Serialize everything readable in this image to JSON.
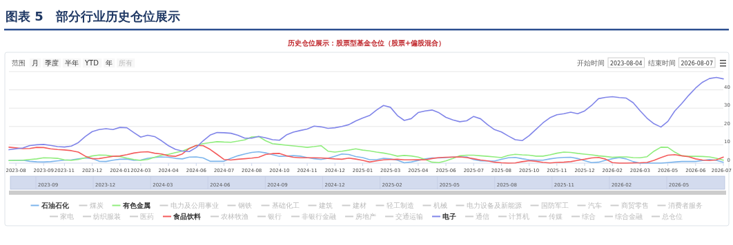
{
  "chart_data": {
    "type": "line",
    "title": "图表 5　部分行业历史仓位展示",
    "subtitle": "历史仓位展示：股票型基金仓位（股票+偏股混合）",
    "categories": [
      null,
      "2023-08",
      null,
      null,
      null,
      "2023-09",
      null,
      null,
      "2023-11",
      null,
      null,
      null,
      "2023-12",
      null,
      null,
      null,
      "2024-01",
      null,
      null,
      "2024-03",
      null,
      null,
      null,
      "2024-04",
      null,
      null,
      null,
      "2024-06",
      null,
      null,
      null,
      "2024-07",
      null,
      null,
      null,
      "2024-08",
      null,
      null,
      null,
      "2024-10",
      null,
      null,
      null,
      "2024-11",
      null,
      null,
      null,
      "2024-12",
      null,
      null,
      null,
      "2025-01",
      null,
      null,
      null,
      "2025-03",
      null,
      null,
      null,
      "2025-04",
      null,
      null,
      null,
      "2025-06",
      null,
      null,
      null,
      "2025-07",
      null,
      null,
      null,
      "2025-08",
      null,
      null,
      null,
      "2025-10",
      null,
      null,
      null,
      "2025-11",
      null,
      null,
      null,
      "2025-12",
      null,
      null,
      null,
      "2026-02",
      null,
      null,
      null,
      "2026-03",
      null,
      null,
      null,
      "2026-05",
      null,
      null,
      null,
      "2026-06",
      null,
      null,
      null,
      "2026-07"
    ],
    "ylim": [
      0,
      50
    ],
    "yticks": [
      0,
      10,
      20,
      30,
      40,
      {
        "value": 50,
        "label": null
      }
    ],
    "grid": "y",
    "legend": "bottom",
    "marker": "none",
    "line_style": "solid",
    "annotations": [
      "范围",
      "月",
      "季度",
      "半年",
      "YTD",
      "年",
      "所有",
      "开始时间",
      "2023-08-04",
      "结束时间",
      "2026-08-07",
      "2023-09",
      "2023-12",
      "2024-03",
      "2024-06",
      "2024-09",
      "2024-12",
      "2025-02",
      "2025-05",
      "2025-08",
      "2025-11",
      "2026-02",
      "2026-05",
      "煤炭",
      "电力及公用事业",
      "钢铁",
      "基础化工",
      "建筑",
      "建材",
      "轻工制造",
      "机械",
      "电力设备及新能源",
      "国防军工",
      "汽车",
      "商贸零售",
      "消费者服务",
      "家电",
      "纺织服装",
      "医药",
      "农林牧渔",
      "银行",
      "非银行金融",
      "房地产",
      "交通运输",
      "通信",
      "计算机",
      "传媒",
      "综合",
      "综合金融",
      "总仓位"
    ],
    "series": [
      {
        "name": "石油石化",
        "color": "#7cb5ec",
        "values": [
          1.4,
          1.5,
          1.6,
          1.0,
          0.7,
          0.6,
          0.8,
          1.2,
          1.6,
          1.8,
          2.3,
          2.8,
          2.5,
          1.0,
          0.9,
          1.6,
          2.1,
          2.2,
          1.5,
          1.7,
          2.6,
          3.1,
          3.4,
          3.2,
          2.6,
          2.3,
          3.3,
          3.4,
          2.8,
          1.0,
          1.0,
          1.0,
          2.6,
          4.0,
          5.0,
          5.8,
          6.2,
          5.6,
          4.6,
          3.7,
          3.8,
          4.1,
          3.8,
          3.0,
          2.4,
          2.0,
          2.6,
          3.8,
          5.0,
          4.7,
          3.6,
          3.0,
          1.9,
          1.9,
          2.6,
          2.3,
          1.6,
          0.2,
          0.6,
          1.4,
          2.3,
          2.8,
          2.8,
          3.0,
          3.3,
          3.4,
          3.4,
          1.9,
          1.2,
          1.1,
          1.1,
          2.1,
          2.9,
          3.1,
          2.4,
          1.8,
          1.6,
          1.6,
          2.3,
          2.8,
          3.1,
          3.2,
          2.5,
          1.3,
          0.3,
          0.5,
          1.5,
          2.4,
          3.0,
          2.3,
          0.8,
          0.0,
          0.0,
          0.0,
          0.0,
          0.3,
          0.6,
          0.9,
          0.9,
          0.9,
          1.4,
          2.0,
          1.5,
          0.5
        ]
      },
      {
        "name": "有色金属",
        "color": "#90ed7d",
        "values": [
          1.4,
          1.5,
          1.6,
          2.0,
          2.3,
          2.9,
          2.8,
          2.6,
          1.8,
          1.5,
          2.0,
          2.9,
          3.9,
          4.4,
          4.3,
          3.7,
          3.6,
          2.7,
          2.0,
          1.5,
          2.0,
          3.2,
          4.3,
          4.8,
          5.7,
          6.6,
          8.1,
          9.6,
          10.6,
          11.2,
          11.7,
          11.5,
          11.4,
          12.0,
          12.7,
          14.3,
          14.5,
          12.2,
          10.6,
          10.2,
          9.8,
          9.4,
          9.0,
          8.6,
          9.0,
          9.5,
          6.5,
          6.0,
          6.5,
          7.1,
          7.8,
          7.1,
          6.7,
          6.0,
          5.5,
          4.8,
          3.8,
          4.2,
          3.9,
          3.3,
          2.0,
          0.5,
          0.3,
          1.2,
          2.5,
          4.0,
          4.3,
          4.3,
          4.0,
          3.7,
          3.4,
          3.0,
          4.2,
          4.8,
          4.5,
          4.3,
          3.8,
          3.8,
          4.5,
          5.4,
          6.0,
          5.8,
          5.3,
          4.9,
          4.5,
          4.0,
          3.6,
          3.2,
          3.4,
          3.4,
          3.0,
          2.9,
          3.5,
          6.5,
          8.7,
          8.6,
          6.0,
          4.0,
          3.7,
          3.7,
          3.6,
          3.4,
          2.6,
          1.6
        ]
      },
      {
        "name": "食品饮料",
        "color": "#f45b5b",
        "values": [
          8.7,
          8.3,
          7.9,
          8.0,
          8.6,
          8.5,
          7.8,
          7.4,
          7.2,
          6.8,
          6.0,
          3.8,
          2.4,
          2.5,
          3.1,
          3.7,
          3.9,
          4.6,
          5.5,
          6.0,
          6.2,
          5.4,
          5.0,
          4.0,
          3.7,
          5.0,
          8.0,
          9.7,
          9.5,
          7.5,
          4.8,
          2.0,
          1.7,
          2.1,
          2.4,
          2.7,
          3.2,
          4.7,
          5.2,
          5.3,
          4.0,
          3.2,
          2.9,
          2.9,
          2.9,
          2.8,
          2.6,
          2.3,
          2.1,
          2.7,
          2.2,
          1.5,
          0.6,
          1.2,
          1.8,
          2.0,
          2.1,
          1.8,
          1.8,
          1.9,
          1.8,
          2.5,
          3.0,
          3.2,
          3.3,
          3.4,
          3.0,
          2.4,
          1.7,
          1.2,
          0.5,
          0.2,
          0.0,
          0.1,
          0.8,
          1.3,
          1.0,
          0.4,
          0.1,
          0.4,
          0.5,
          0.8,
          1.5,
          2.1,
          2.8,
          3.1,
          2.2,
          0.3,
          0.0,
          0.0,
          0.1,
          0.2,
          0.4,
          1.5,
          3.0,
          4.3,
          4.6,
          4.0,
          3.5,
          2.3,
          1.7,
          1.4,
          1.8,
          3.3
        ]
      },
      {
        "name": "电子",
        "color": "#8085e9",
        "values": [
          7.3,
          7.8,
          8.3,
          9.6,
          10.0,
          10.2,
          9.7,
          9.0,
          8.8,
          9.3,
          11.2,
          14.5,
          17.2,
          18.3,
          18.8,
          18.3,
          19.5,
          19.3,
          16.7,
          14.2,
          15.2,
          14.5,
          12.2,
          9.5,
          7.5,
          6.6,
          6.3,
          8.5,
          12.2,
          15.3,
          16.7,
          16.6,
          16.3,
          15.2,
          13.6,
          13.6,
          14.6,
          13.8,
          12.8,
          12.5,
          15.4,
          16.9,
          17.8,
          18.6,
          20.2,
          19.8,
          19.0,
          19.3,
          20.0,
          21.0,
          23.0,
          24.6,
          26.0,
          29.0,
          31.5,
          30.5,
          26.0,
          23.3,
          24.3,
          27.6,
          28.5,
          29.0,
          27.5,
          25.0,
          23.6,
          22.6,
          23.1,
          25.5,
          24.2,
          21.0,
          18.3,
          17.0,
          14.8,
          12.8,
          12.3,
          15.0,
          18.5,
          22.0,
          24.8,
          26.4,
          27.0,
          27.8,
          27.0,
          28.5,
          31.5,
          35.2,
          35.9,
          36.3,
          35.8,
          35.5,
          33.0,
          28.6,
          24.5,
          21.5,
          19.7,
          22.8,
          28.5,
          32.5,
          37.0,
          41.0,
          44.2,
          46.2,
          46.8,
          46.0
        ]
      }
    ]
  }
}
